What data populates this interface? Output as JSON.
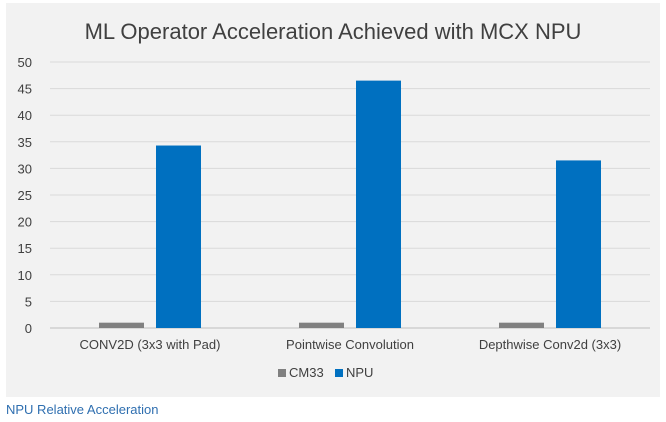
{
  "chart_data": {
    "type": "bar",
    "title": "ML Operator Acceleration Achieved with MCX NPU",
    "categories": [
      "CONV2D (3x3 with Pad)",
      "Pointwise Convolution",
      "Depthwise Conv2d (3x3)"
    ],
    "series": [
      {
        "name": "CM33",
        "values": [
          1,
          1,
          1
        ],
        "color": "#808080"
      },
      {
        "name": "NPU",
        "values": [
          34.3,
          46.5,
          31.5
        ],
        "color": "#0070c0"
      }
    ],
    "ylim": [
      0,
      50
    ],
    "yticks": [
      "0",
      "5",
      "10",
      "15",
      "20",
      "25",
      "30",
      "35",
      "40",
      "45",
      "50"
    ],
    "xlabel": "",
    "ylabel": "",
    "grid": true,
    "legend_position": "bottom-center"
  },
  "caption": "NPU Relative Acceleration"
}
